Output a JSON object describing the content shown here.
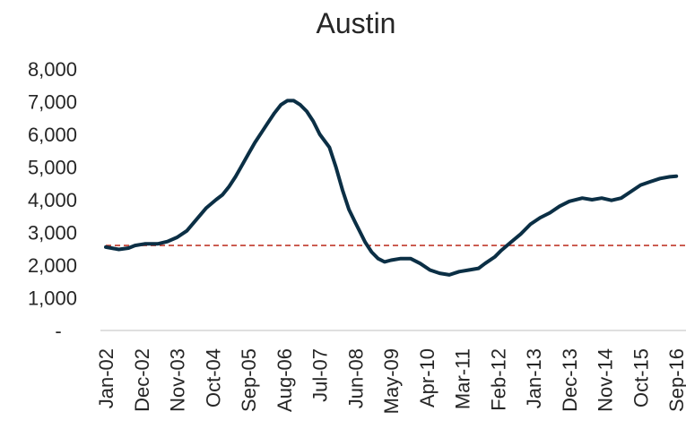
{
  "chart_data": {
    "type": "line",
    "title": "Austin",
    "xlabel": "",
    "ylabel": "",
    "ylim": [
      0,
      8000
    ],
    "y_ticks": [
      {
        "value": 0,
        "label": "-"
      },
      {
        "value": 1000,
        "label": "1,000"
      },
      {
        "value": 2000,
        "label": "2,000"
      },
      {
        "value": 3000,
        "label": "3,000"
      },
      {
        "value": 4000,
        "label": "4,000"
      },
      {
        "value": 5000,
        "label": "5,000"
      },
      {
        "value": 6000,
        "label": "6,000"
      },
      {
        "value": 7000,
        "label": "7,000"
      },
      {
        "value": 8000,
        "label": "8,000"
      }
    ],
    "x_ticks": [
      {
        "month_index": 0,
        "label": "Jan-02"
      },
      {
        "month_index": 11,
        "label": "Dec-02"
      },
      {
        "month_index": 22,
        "label": "Nov-03"
      },
      {
        "month_index": 33,
        "label": "Oct-04"
      },
      {
        "month_index": 44,
        "label": "Sep-05"
      },
      {
        "month_index": 55,
        "label": "Aug-06"
      },
      {
        "month_index": 66,
        "label": "Jul-07"
      },
      {
        "month_index": 77,
        "label": "Jun-08"
      },
      {
        "month_index": 88,
        "label": "May-09"
      },
      {
        "month_index": 99,
        "label": "Apr-10"
      },
      {
        "month_index": 110,
        "label": "Mar-11"
      },
      {
        "month_index": 121,
        "label": "Feb-12"
      },
      {
        "month_index": 132,
        "label": "Jan-13"
      },
      {
        "month_index": 143,
        "label": "Dec-13"
      },
      {
        "month_index": 154,
        "label": "Nov-14"
      },
      {
        "month_index": 165,
        "label": "Oct-15"
      },
      {
        "month_index": 176,
        "label": "Sep-16"
      }
    ],
    "x_range": [
      0,
      179
    ],
    "grid": false,
    "legend": "none",
    "series": [
      {
        "color": "#0b2f45",
        "points": [
          [
            0,
            2550
          ],
          [
            4,
            2480
          ],
          [
            7,
            2520
          ],
          [
            9,
            2600
          ],
          [
            12,
            2650
          ],
          [
            16,
            2650
          ],
          [
            19,
            2720
          ],
          [
            22,
            2850
          ],
          [
            25,
            3050
          ],
          [
            28,
            3400
          ],
          [
            31,
            3750
          ],
          [
            34,
            4000
          ],
          [
            36,
            4150
          ],
          [
            38,
            4400
          ],
          [
            40,
            4700
          ],
          [
            42,
            5050
          ],
          [
            44,
            5400
          ],
          [
            46,
            5750
          ],
          [
            48,
            6050
          ],
          [
            50,
            6350
          ],
          [
            52,
            6650
          ],
          [
            54,
            6900
          ],
          [
            56,
            7030
          ],
          [
            58,
            7030
          ],
          [
            60,
            6900
          ],
          [
            62,
            6700
          ],
          [
            64,
            6400
          ],
          [
            66,
            6000
          ],
          [
            69,
            5600
          ],
          [
            71,
            5000
          ],
          [
            73,
            4300
          ],
          [
            75,
            3700
          ],
          [
            77,
            3300
          ],
          [
            80,
            2700
          ],
          [
            82,
            2400
          ],
          [
            84,
            2200
          ],
          [
            86,
            2100
          ],
          [
            88,
            2150
          ],
          [
            91,
            2200
          ],
          [
            94,
            2200
          ],
          [
            97,
            2050
          ],
          [
            100,
            1850
          ],
          [
            103,
            1750
          ],
          [
            106,
            1700
          ],
          [
            109,
            1800
          ],
          [
            112,
            1850
          ],
          [
            115,
            1900
          ],
          [
            117,
            2050
          ],
          [
            120,
            2250
          ],
          [
            122,
            2450
          ],
          [
            125,
            2700
          ],
          [
            128,
            2950
          ],
          [
            131,
            3250
          ],
          [
            134,
            3450
          ],
          [
            137,
            3600
          ],
          [
            140,
            3800
          ],
          [
            143,
            3950
          ],
          [
            147,
            4050
          ],
          [
            150,
            4000
          ],
          [
            153,
            4050
          ],
          [
            156,
            3980
          ],
          [
            159,
            4050
          ],
          [
            162,
            4250
          ],
          [
            165,
            4450
          ],
          [
            168,
            4550
          ],
          [
            171,
            4650
          ],
          [
            174,
            4700
          ],
          [
            176,
            4720
          ]
        ]
      }
    ],
    "reference_line": {
      "value": 2600,
      "color": "#c0392b",
      "style": "dashed"
    }
  }
}
